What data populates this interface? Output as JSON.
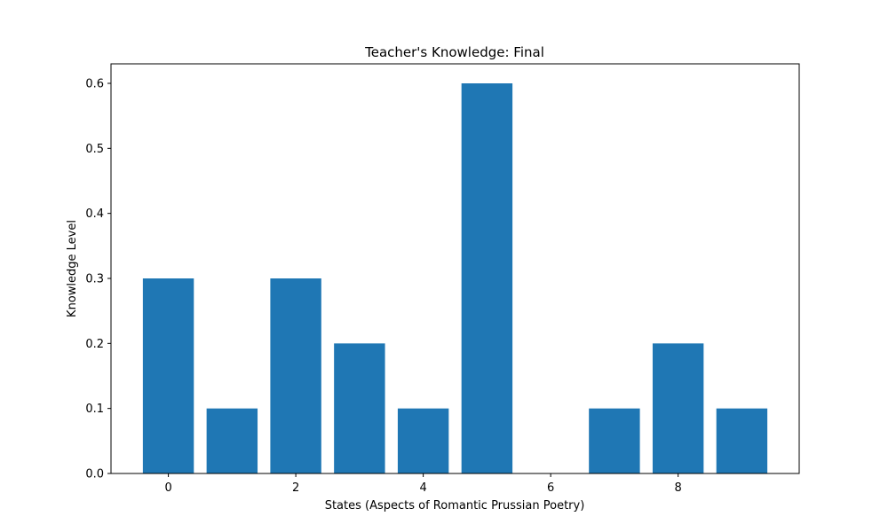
{
  "chart_data": {
    "type": "bar",
    "title": "Teacher's Knowledge: Final",
    "xlabel": "States (Aspects of Romantic Prussian Poetry)",
    "ylabel": "Knowledge Level",
    "x": [
      0,
      1,
      2,
      3,
      4,
      5,
      6,
      7,
      8,
      9
    ],
    "values": [
      0.3,
      0.1,
      0.3,
      0.2,
      0.1,
      0.6,
      0.0,
      0.1,
      0.2,
      0.1
    ],
    "xticks": [
      0,
      2,
      4,
      6,
      8
    ],
    "yticks": [
      0.0,
      0.1,
      0.2,
      0.3,
      0.4,
      0.5,
      0.6
    ],
    "xlim": [
      -0.9,
      9.9
    ],
    "ylim": [
      0,
      0.63
    ],
    "bar_color": "#1f77b4",
    "grid": false,
    "legend": "none"
  }
}
